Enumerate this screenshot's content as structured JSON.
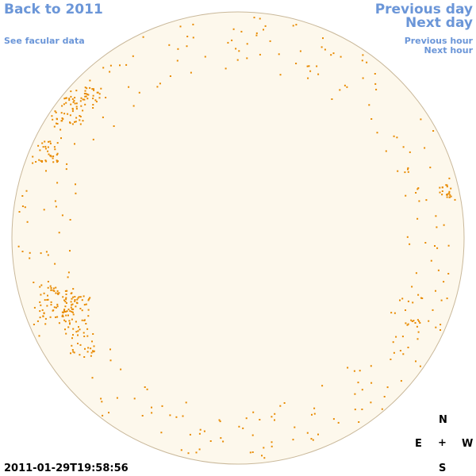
{
  "nav": {
    "back": "Back to 2011",
    "facular": "See facular data",
    "previous_day": "Previous day",
    "next_day": "Next day",
    "previous_hour": "Previous hour",
    "next_hour": "Next hour"
  },
  "compass": {
    "north": "N",
    "east": "E",
    "center": "+",
    "west": "W",
    "south": "S"
  },
  "timestamp": "2011-01-29T19:58:56",
  "colors": {
    "disk": "#fdf8ec",
    "limb": "#c9b89a",
    "feature": "#e88a00",
    "link": "#6b96d8"
  }
}
